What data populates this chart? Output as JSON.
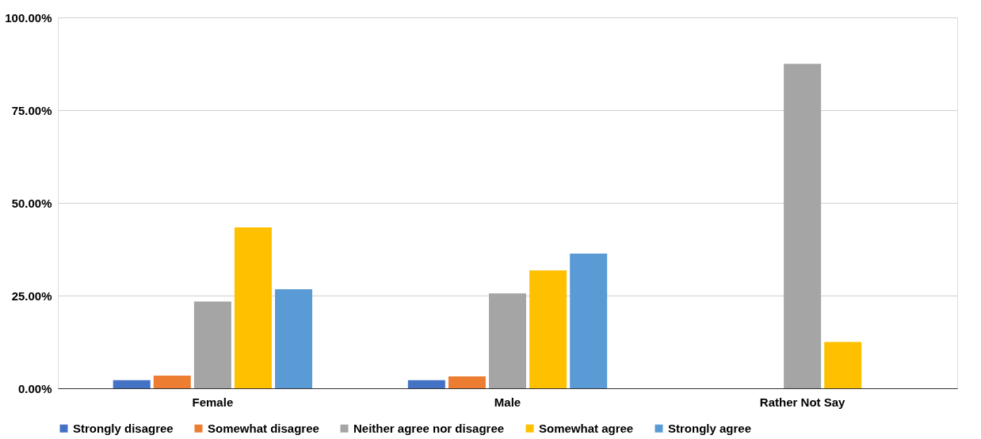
{
  "chart_data": {
    "type": "bar",
    "categories": [
      "Female",
      "Male",
      "Rather Not Say"
    ],
    "series": [
      {
        "name": "Strongly disagree",
        "color": "#4472c4",
        "values": [
          2.2,
          2.2,
          0
        ]
      },
      {
        "name": "Somewhat disagree",
        "color": "#ed7d31",
        "values": [
          3.4,
          3.2,
          0
        ]
      },
      {
        "name": "Neither agree nor disagree",
        "color": "#a5a5a5",
        "values": [
          23.4,
          25.6,
          87.5
        ]
      },
      {
        "name": "Somewhat agree",
        "color": "#ffc000",
        "values": [
          43.4,
          31.8,
          12.5
        ]
      },
      {
        "name": "Strongly agree",
        "color": "#5b9bd5",
        "values": [
          26.7,
          36.3,
          0
        ]
      }
    ],
    "ylim": [
      0,
      100
    ],
    "yticks": [
      {
        "value": 0,
        "label": "0.00%"
      },
      {
        "value": 25,
        "label": "25.00%"
      },
      {
        "value": 50,
        "label": "50.00%"
      },
      {
        "value": 75,
        "label": "75.00%"
      },
      {
        "value": 100,
        "label": "100.00%"
      }
    ],
    "grid": "y",
    "legend": "bottom"
  }
}
